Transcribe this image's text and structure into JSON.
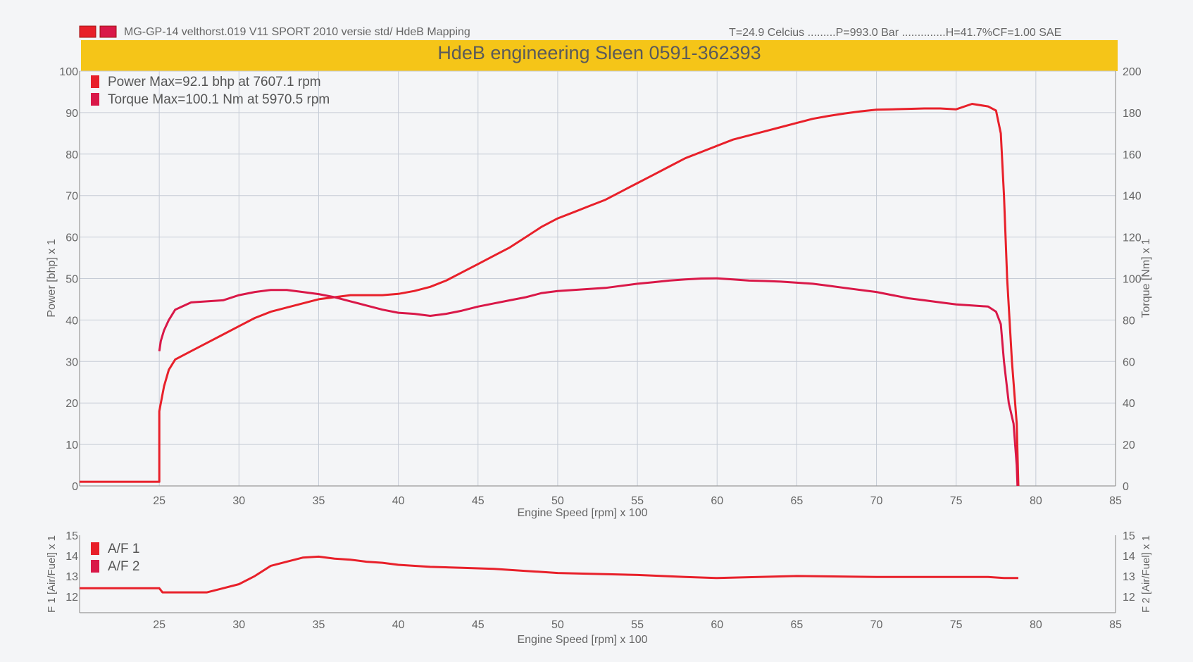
{
  "header": {
    "run_info": "MG-GP-14 velthorst.019 V11 SPORT    2010 versie std/  HdeB Mapping",
    "conditions": "T=24.9 Celcius .........P=993.0 Bar ..............H=41.7%CF=1.00 SAE",
    "banner_title": "HdeB engineering Sleen 0591-362393",
    "banner_color": "#f5c518"
  },
  "colors": {
    "power": "#e8202a",
    "torque": "#d91848",
    "af": "#e8202a"
  },
  "chart_data": [
    {
      "type": "line",
      "xlabel": "Engine Speed [rpm] x 100",
      "ylabel_left": "Power [bhp] x 1",
      "ylabel_right": "Torque [Nm] x 1",
      "xlim": [
        20,
        85
      ],
      "ylim_left": [
        0,
        100
      ],
      "ylim_right": [
        0,
        200
      ],
      "x_ticks": [
        25,
        30,
        35,
        40,
        45,
        50,
        55,
        60,
        65,
        70,
        75,
        80,
        85
      ],
      "y_ticks_left": [
        0,
        10,
        20,
        30,
        40,
        50,
        60,
        70,
        80,
        90,
        100
      ],
      "y_ticks_right": [
        0,
        20,
        40,
        60,
        80,
        100,
        120,
        140,
        160,
        180,
        200
      ],
      "grid": true,
      "legend_position": "top-left",
      "series": [
        {
          "name": "Power",
          "legend": "Power  Max=92.1 bhp at 7607.1 rpm",
          "axis": "left",
          "x": [
            20,
            25,
            25,
            25.1,
            25.3,
            25.6,
            26,
            27,
            28,
            29,
            30,
            31,
            32,
            33,
            34,
            35,
            36,
            37,
            38,
            39,
            40,
            41,
            42,
            43,
            44,
            45,
            46,
            47,
            48,
            49,
            50,
            51,
            52,
            53,
            54,
            55,
            56,
            57,
            58,
            59,
            60,
            61,
            62,
            63,
            64,
            65,
            66,
            67,
            68,
            69,
            70,
            71,
            72,
            73,
            74,
            75,
            76,
            77,
            77.5,
            77.8,
            78,
            78.2,
            78.5,
            78.8,
            78.9
          ],
          "y": [
            1,
            1,
            18,
            20,
            24,
            28,
            30.5,
            32.5,
            34.5,
            36.5,
            38.5,
            40.5,
            42,
            43,
            44,
            45,
            45.5,
            46,
            46,
            46,
            46.3,
            47,
            48,
            49.5,
            51.5,
            53.5,
            55.5,
            57.5,
            60,
            62.5,
            64.5,
            66,
            67.5,
            69,
            71,
            73,
            75,
            77,
            79,
            80.5,
            82,
            83.5,
            84.5,
            85.5,
            86.5,
            87.5,
            88.5,
            89.2,
            89.8,
            90.3,
            90.7,
            90.8,
            90.9,
            91,
            91,
            90.8,
            92.1,
            91.5,
            90.5,
            85,
            70,
            50,
            30,
            15,
            0
          ]
        },
        {
          "name": "Torque",
          "legend": "Torque  Max=100.1 Nm at 5970.5 rpm",
          "axis": "right",
          "x": [
            25,
            25.1,
            25.3,
            25.6,
            26,
            27,
            28,
            29,
            30,
            31,
            32,
            33,
            34,
            35,
            36,
            37,
            38,
            39,
            40,
            41,
            42,
            43,
            44,
            45,
            46,
            47,
            48,
            49,
            50,
            51,
            52,
            53,
            54,
            55,
            56,
            57,
            58,
            59,
            60,
            61,
            62,
            63,
            64,
            65,
            66,
            67,
            68,
            69,
            70,
            71,
            72,
            73,
            74,
            75,
            76,
            77,
            77.5,
            77.8,
            78,
            78.3,
            78.6,
            78.8,
            78.85
          ],
          "y": [
            65,
            70,
            75,
            80,
            85,
            88.5,
            89,
            89.5,
            92,
            93.5,
            94.5,
            94.5,
            93.5,
            92.5,
            91,
            89,
            87,
            85,
            83.5,
            83,
            82,
            83,
            84.5,
            86.5,
            88,
            89.5,
            91,
            93,
            94,
            94.5,
            95,
            95.5,
            96.5,
            97.5,
            98.2,
            99,
            99.6,
            100,
            100.1,
            99.6,
            99,
            98.8,
            98.5,
            98,
            97.5,
            96.5,
            95.5,
            94.5,
            93.5,
            92,
            90.5,
            89.5,
            88.5,
            87.5,
            87,
            86.5,
            84,
            78,
            60,
            40,
            30,
            10,
            0
          ]
        }
      ]
    },
    {
      "type": "line",
      "xlabel": "Engine Speed [rpm] x 100",
      "ylabel_left": "F 1 [Air/Fuel] x 1",
      "ylabel_right": "F 2 [Air/Fuel] x 1",
      "xlim": [
        20,
        85
      ],
      "ylim_left": [
        11.2,
        15
      ],
      "ylim_right": [
        11.2,
        15
      ],
      "x_ticks": [
        25,
        30,
        35,
        40,
        45,
        50,
        55,
        60,
        65,
        70,
        75,
        80,
        85
      ],
      "y_ticks_left": [
        12,
        13,
        14,
        15
      ],
      "y_ticks_right": [
        12,
        13,
        14,
        15
      ],
      "grid": false,
      "legend_position": "top-left",
      "series": [
        {
          "name": "A/F 1",
          "axis": "left",
          "x": [
            20,
            25,
            25.2,
            28,
            29,
            30,
            31,
            32,
            33,
            34,
            35,
            36,
            37,
            38,
            39,
            40,
            42,
            44,
            46,
            48,
            50,
            55,
            58,
            60,
            65,
            70,
            75,
            77,
            78,
            78.9
          ],
          "y": [
            12.4,
            12.4,
            12.2,
            12.2,
            12.4,
            12.6,
            13,
            13.5,
            13.7,
            13.9,
            13.95,
            13.85,
            13.8,
            13.7,
            13.65,
            13.55,
            13.45,
            13.4,
            13.35,
            13.25,
            13.15,
            13.05,
            12.95,
            12.9,
            13,
            12.95,
            12.95,
            12.95,
            12.9,
            12.9
          ]
        },
        {
          "name": "A/F 2",
          "axis": "left",
          "x": [],
          "y": []
        }
      ]
    }
  ]
}
